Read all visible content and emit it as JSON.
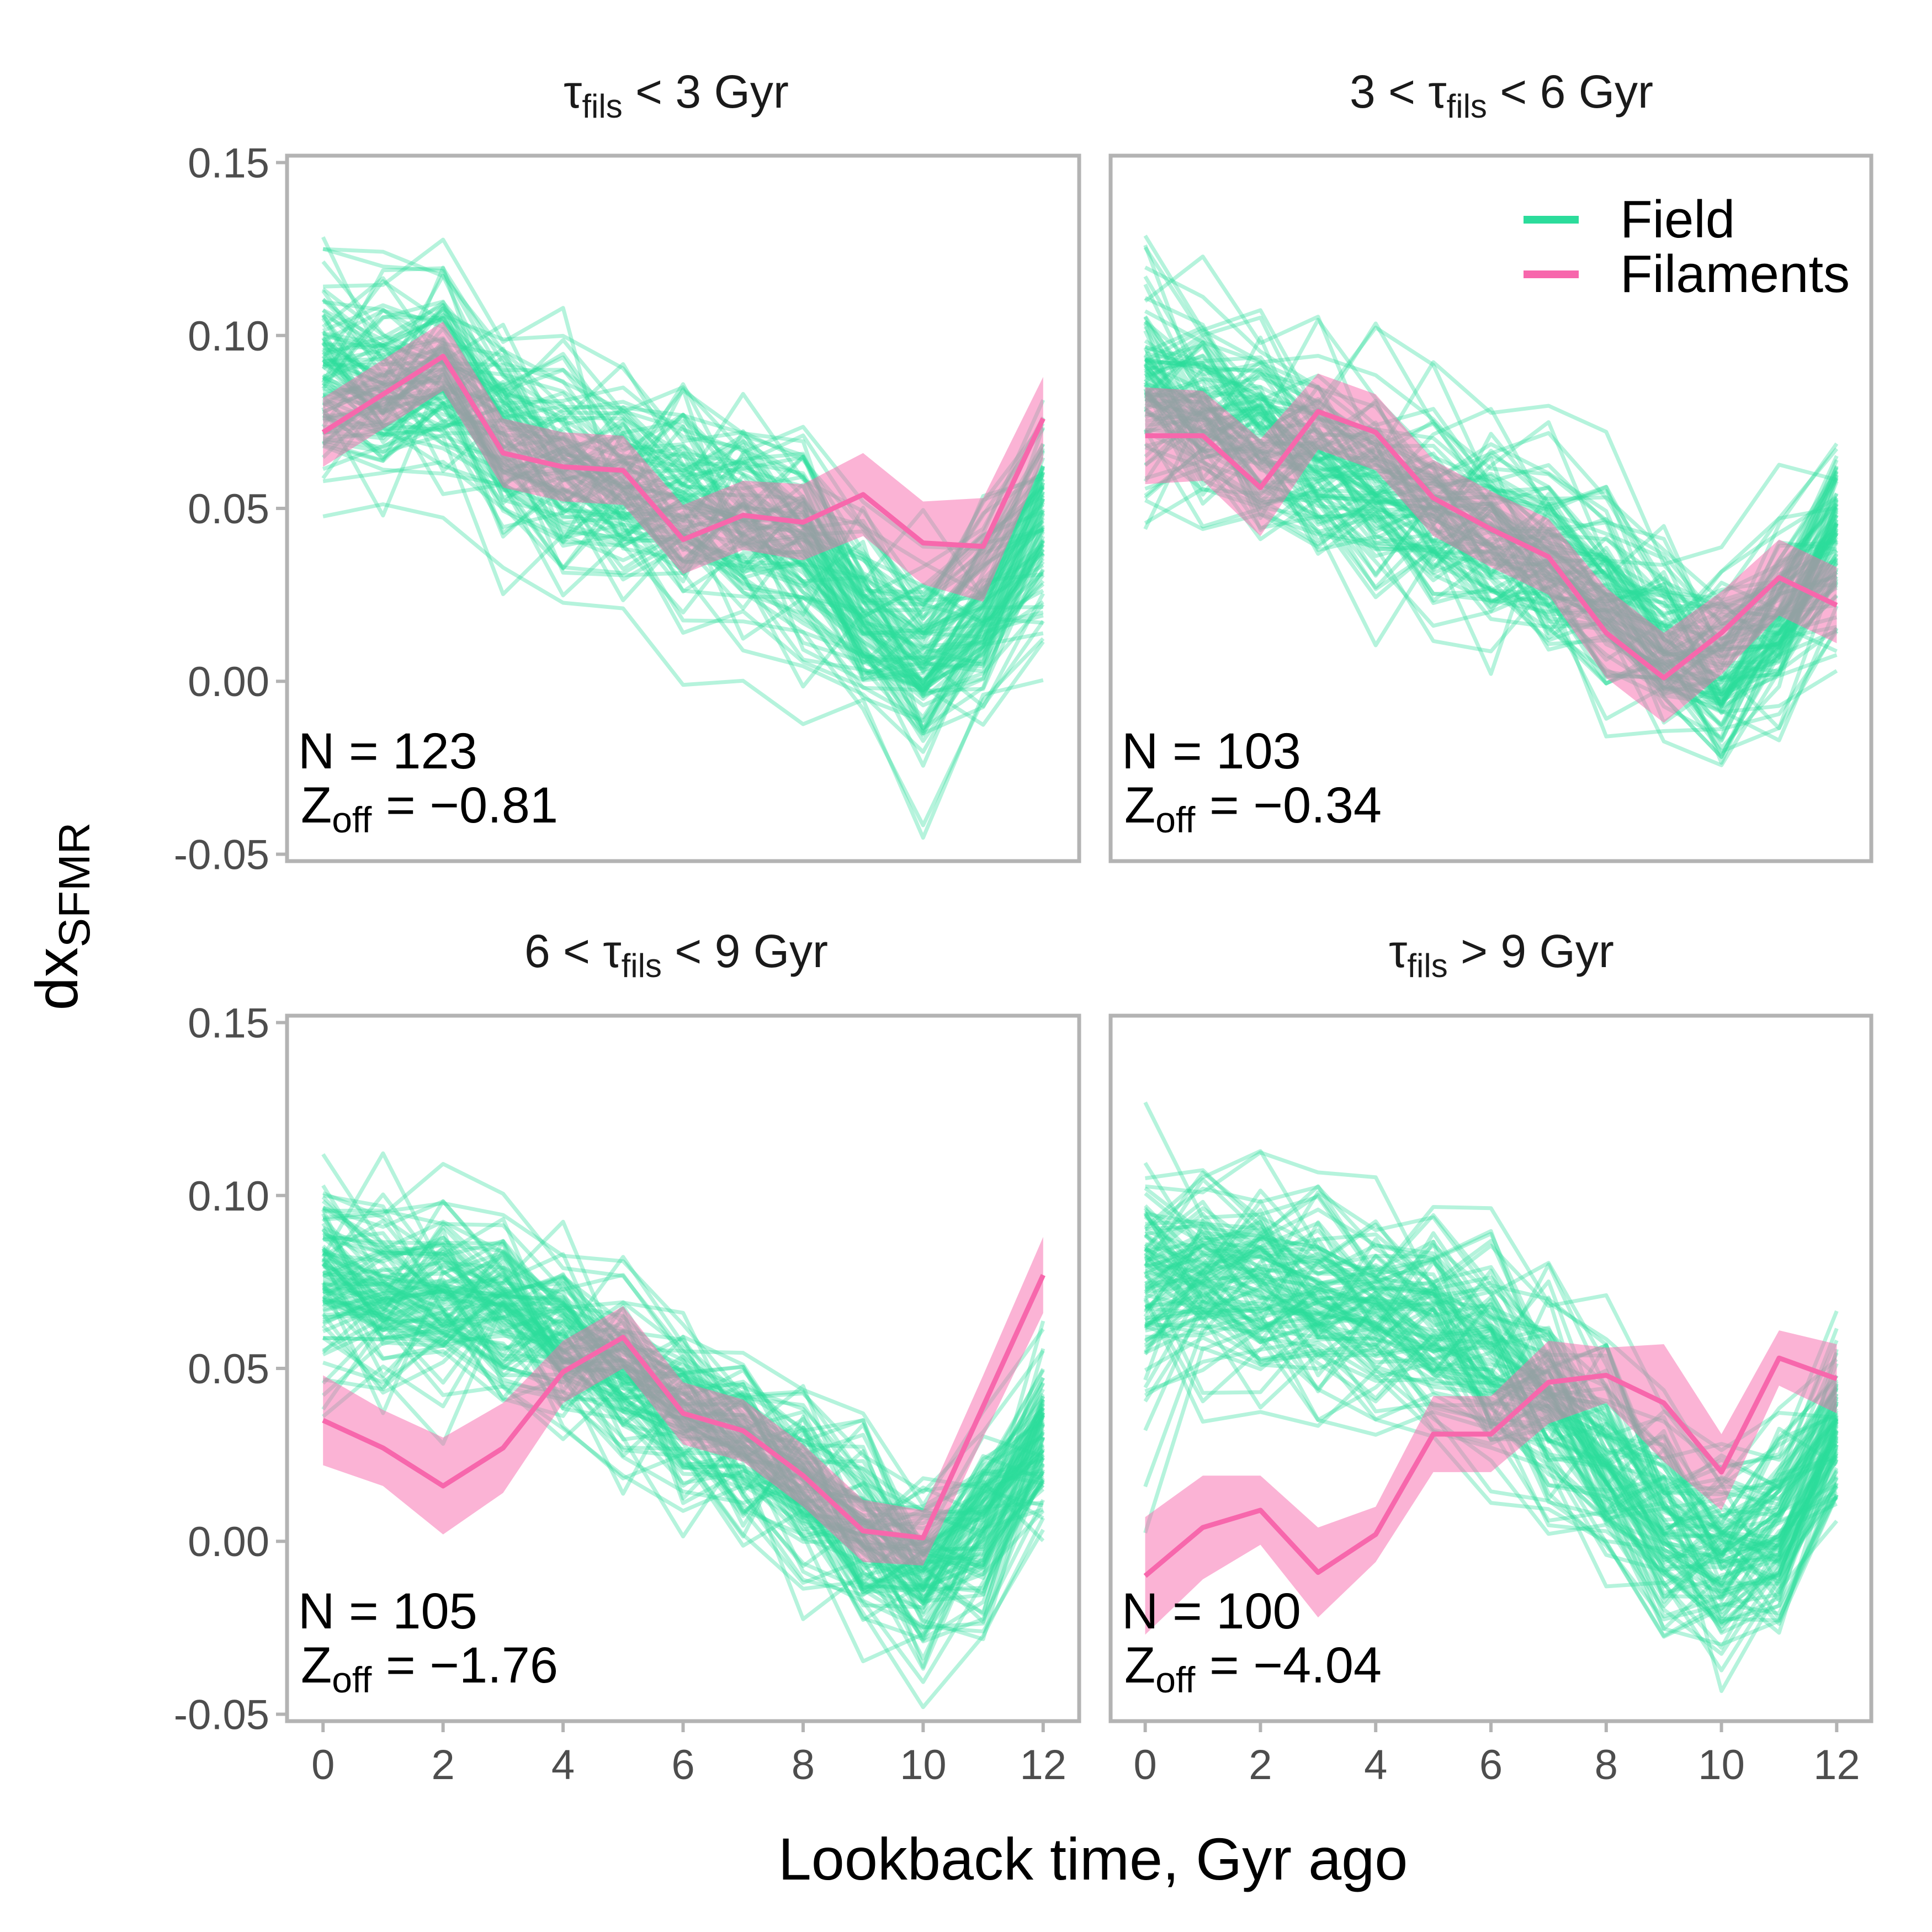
{
  "chart_data": {
    "type": "line",
    "xlabel": "Lookback time, Gyr ago",
    "ylabel_main": "dx",
    "ylabel_sub": "SFMR",
    "x": [
      0,
      1,
      2,
      3,
      4,
      5,
      6,
      7,
      8,
      9,
      10,
      11,
      12
    ],
    "x_ticks": [
      0,
      2,
      4,
      6,
      8,
      10,
      12
    ],
    "x_tick_labels": [
      "0",
      "2",
      "4",
      "6",
      "8",
      "10",
      "12"
    ],
    "xlim": [
      -0.6,
      12.6
    ],
    "y_ticks": [
      0.15,
      0.1,
      0.05,
      0.0,
      -0.05
    ],
    "y_tick_labels": [
      "0.15",
      "0.10",
      "0.05",
      "0.00",
      "-0.05"
    ],
    "ylim": [
      -0.052,
      0.152
    ],
    "grid": false,
    "legend": {
      "position": "top-right",
      "items": [
        {
          "label": "Field",
          "color": "#2bdc9b"
        },
        {
          "label": "Filaments",
          "color": "#f767ac"
        }
      ]
    },
    "colors": {
      "field": "#2bdc9b",
      "filaments": "#f767ac",
      "band": "#f9a8cf",
      "frame": "#b3b3b3"
    },
    "field_lines_per_panel": 100,
    "panels": [
      {
        "title_pre": "τ",
        "title_sub": "fils",
        "title_post": " < 3 Gyr",
        "n_label": "N = 123",
        "z_pre": "Z",
        "z_sub": "off",
        "z_post": " = −0.81",
        "filaments": [
          0.072,
          0.083,
          0.094,
          0.066,
          0.062,
          0.061,
          0.041,
          0.048,
          0.046,
          0.054,
          0.04,
          0.039,
          0.076
        ],
        "band_upper": [
          0.082,
          0.093,
          0.104,
          0.076,
          0.072,
          0.071,
          0.051,
          0.058,
          0.057,
          0.066,
          0.052,
          0.053,
          0.088
        ],
        "band_lower": [
          0.062,
          0.073,
          0.084,
          0.056,
          0.052,
          0.051,
          0.031,
          0.038,
          0.035,
          0.042,
          0.028,
          0.023,
          0.064
        ],
        "field_mean": [
          0.088,
          0.085,
          0.088,
          0.07,
          0.063,
          0.056,
          0.05,
          0.045,
          0.038,
          0.02,
          0.005,
          0.02,
          0.045
        ]
      },
      {
        "title_pre": "3 < τ",
        "title_sub": "fils",
        "title_post": " < 6 Gyr",
        "n_label": "N = 103",
        "z_pre": "Z",
        "z_sub": "off",
        "z_post": " = −0.34",
        "filaments": [
          0.071,
          0.071,
          0.056,
          0.078,
          0.072,
          0.053,
          0.044,
          0.036,
          0.014,
          0.001,
          0.014,
          0.03,
          0.022
        ],
        "band_upper": [
          0.085,
          0.084,
          0.07,
          0.089,
          0.083,
          0.064,
          0.055,
          0.047,
          0.027,
          0.014,
          0.026,
          0.041,
          0.033
        ],
        "band_lower": [
          0.057,
          0.058,
          0.042,
          0.067,
          0.061,
          0.042,
          0.033,
          0.025,
          0.001,
          -0.012,
          0.002,
          0.019,
          0.011
        ],
        "field_mean": [
          0.087,
          0.078,
          0.072,
          0.065,
          0.058,
          0.05,
          0.044,
          0.036,
          0.026,
          0.012,
          0.004,
          0.018,
          0.044
        ]
      },
      {
        "title_pre": "6 < τ",
        "title_sub": "fils",
        "title_post": " < 9 Gyr",
        "n_label": "N = 105",
        "z_pre": "Z",
        "z_sub": "off",
        "z_post": " = −1.76",
        "filaments": [
          0.035,
          0.027,
          0.016,
          0.027,
          0.049,
          0.059,
          0.037,
          0.032,
          0.019,
          0.003,
          0.001,
          0.039,
          0.077
        ],
        "band_upper": [
          0.048,
          0.038,
          0.03,
          0.04,
          0.058,
          0.068,
          0.046,
          0.041,
          0.028,
          0.012,
          0.009,
          0.048,
          0.088
        ],
        "band_lower": [
          0.022,
          0.016,
          0.002,
          0.014,
          0.04,
          0.05,
          0.028,
          0.023,
          0.01,
          -0.006,
          -0.007,
          0.03,
          0.066
        ],
        "field_mean": [
          0.076,
          0.072,
          0.072,
          0.068,
          0.058,
          0.048,
          0.038,
          0.028,
          0.016,
          0.002,
          -0.01,
          0.004,
          0.03
        ]
      },
      {
        "title_pre": "τ",
        "title_sub": "fils",
        "title_post": " > 9 Gyr",
        "n_label": "N = 100",
        "z_pre": "Z",
        "z_sub": "off",
        "z_post": " = −4.04",
        "filaments": [
          -0.01,
          0.004,
          0.009,
          -0.009,
          0.002,
          0.031,
          0.031,
          0.046,
          0.048,
          0.04,
          0.02,
          0.053,
          0.047
        ],
        "band_upper": [
          0.007,
          0.019,
          0.019,
          0.004,
          0.01,
          0.042,
          0.042,
          0.058,
          0.056,
          0.057,
          0.031,
          0.061,
          0.057
        ],
        "band_lower": [
          -0.027,
          -0.011,
          -0.001,
          -0.022,
          -0.006,
          0.02,
          0.02,
          0.034,
          0.04,
          0.023,
          0.009,
          0.045,
          0.037
        ],
        "field_mean": [
          0.074,
          0.076,
          0.074,
          0.07,
          0.066,
          0.06,
          0.052,
          0.04,
          0.022,
          0.006,
          -0.004,
          0.004,
          0.03
        ]
      }
    ]
  }
}
